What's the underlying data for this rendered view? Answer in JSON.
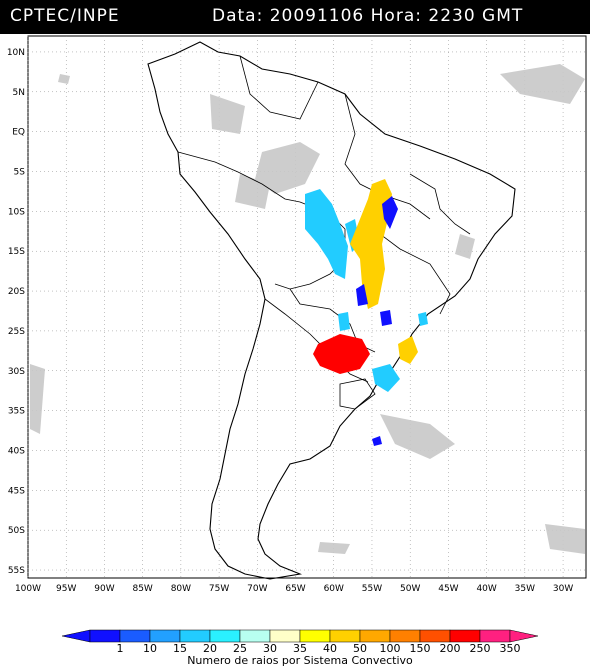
{
  "title": {
    "source": "CPTEC/INPE",
    "datetime": "Data: 20091106 Hora: 2230 GMT"
  },
  "map": {
    "lat_labels": [
      "10N",
      "5N",
      "EQ",
      "5S",
      "10S",
      "15S",
      "20S",
      "25S",
      "30S",
      "35S",
      "40S",
      "45S",
      "50S",
      "55S"
    ],
    "lon_labels": [
      "100W",
      "95W",
      "90W",
      "85W",
      "80W",
      "75W",
      "70W",
      "65W",
      "60W",
      "55W",
      "50W",
      "45W",
      "40W",
      "35W",
      "30W"
    ],
    "lat_values": [
      10,
      5,
      0,
      -5,
      -10,
      -15,
      -20,
      -25,
      -30,
      -35,
      -40,
      -45,
      -50,
      -55
    ],
    "lon_values": [
      -100,
      -95,
      -90,
      -85,
      -80,
      -75,
      -70,
      -65,
      -60,
      -55,
      -50,
      -45,
      -40,
      -35,
      -30
    ],
    "extent": {
      "lon": [
        -100,
        -27
      ],
      "lat": [
        -56,
        12
      ]
    },
    "colors": {
      "land_outline": "#000000",
      "cloud": "#c8c8c8",
      "grid": "#888888"
    }
  },
  "legend": {
    "caption": "Numero de raios por Sistema Convectivo",
    "ticks": [
      "1",
      "10",
      "15",
      "20",
      "25",
      "30",
      "35",
      "40",
      "50",
      "100",
      "150",
      "200",
      "250",
      "350"
    ],
    "colors": [
      "#1010ff",
      "#1a5cff",
      "#22a0ff",
      "#22ccff",
      "#2af0ff",
      "#b8fff0",
      "#ffffc8",
      "#ffff00",
      "#ffd000",
      "#ffa800",
      "#ff8000",
      "#ff5000",
      "#ff0000",
      "#ff2080"
    ]
  }
}
